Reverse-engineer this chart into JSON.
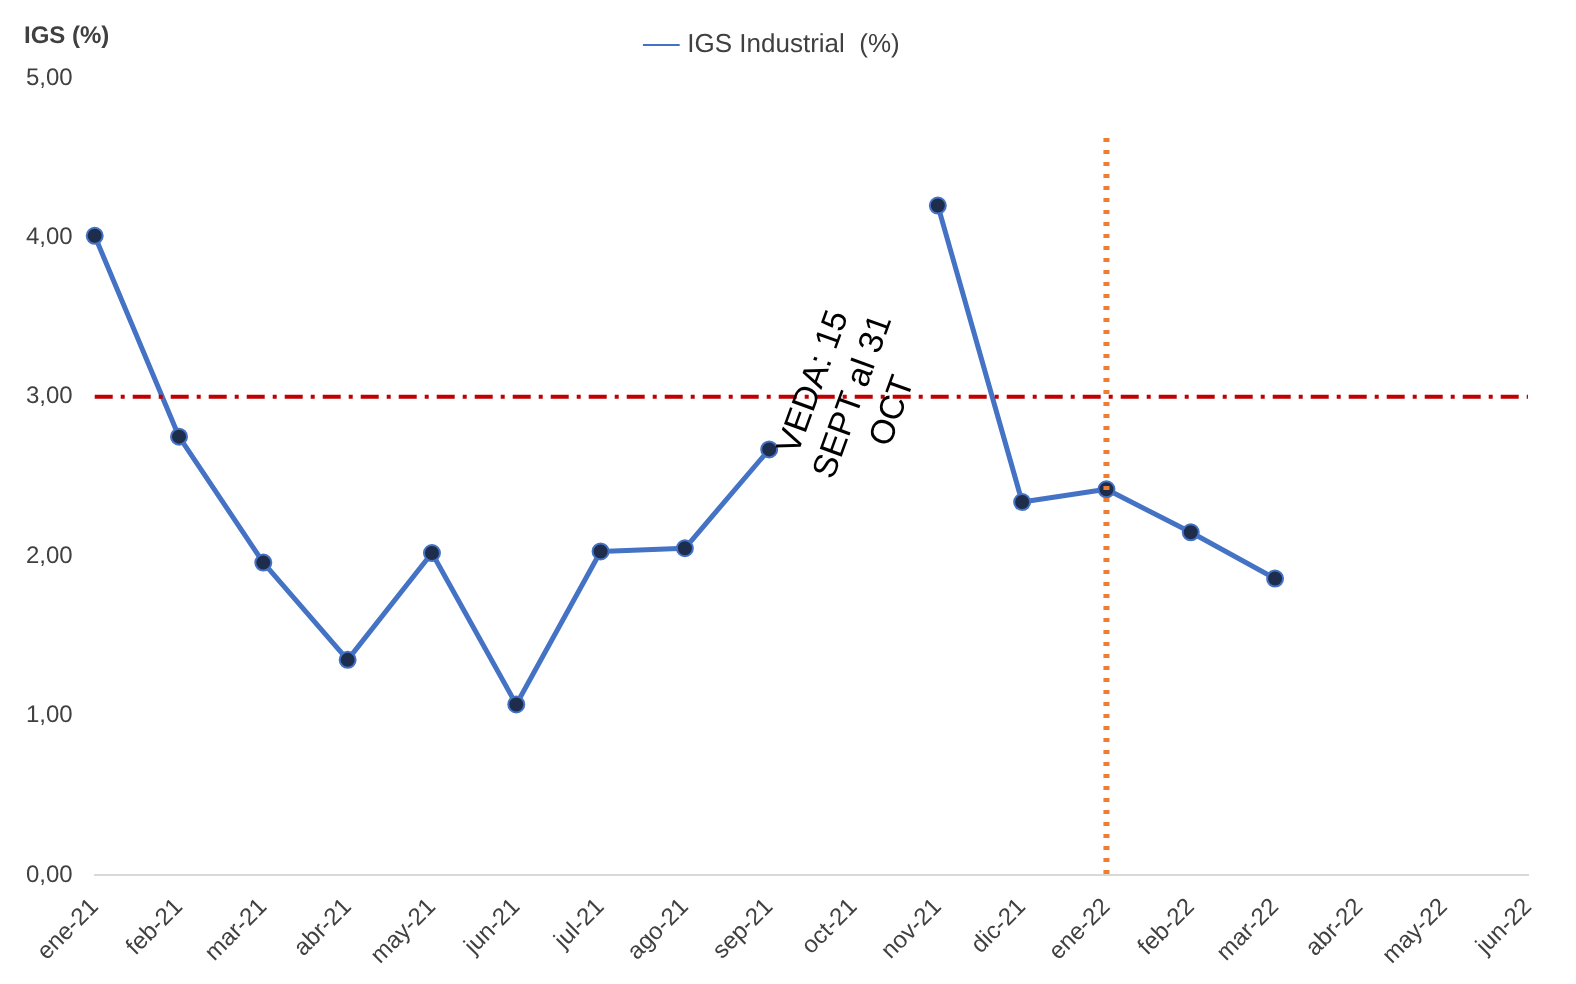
{
  "chart_data": {
    "type": "line",
    "ylabel": "IGS (%)",
    "legend": "top",
    "marker": "circle",
    "line_style": "solid",
    "grid": false,
    "categories": [
      "ene-21",
      "feb-21",
      "mar-21",
      "abr-21",
      "may-21",
      "jun-21",
      "jul-21",
      "ago-21",
      "sep-21",
      "oct-21",
      "nov-21",
      "dic-21",
      "ene-22",
      "feb-22",
      "mar-22",
      "abr-22",
      "may-22",
      "jun-22"
    ],
    "series": [
      {
        "name": "IGS Industrial  (%)",
        "color": "#4472c4",
        "values": [
          4.01,
          2.75,
          1.96,
          1.35,
          2.02,
          1.07,
          2.03,
          2.05,
          2.67,
          null,
          4.2,
          2.34,
          2.42,
          2.15,
          1.86,
          null,
          null,
          null
        ]
      }
    ],
    "ylim": [
      0,
      5
    ],
    "yticks": [
      {
        "value": 0,
        "label": "0,00"
      },
      {
        "value": 1,
        "label": "1,00"
      },
      {
        "value": 2,
        "label": "2,00"
      },
      {
        "value": 3,
        "label": "3,00"
      },
      {
        "value": 4,
        "label": "4,00"
      },
      {
        "value": 5,
        "label": "5,00"
      }
    ],
    "ref_lines": [
      {
        "axis": "y",
        "value": 3,
        "color": "#c00000",
        "line_style": "dashdot"
      },
      {
        "axis": "x",
        "value": "ene-22",
        "color": "#ed7d31",
        "line_style": "dotted"
      }
    ],
    "annotations": [
      {
        "text": "VEDA: 15\nSEPT al 31\nOCT",
        "x": "oct-21",
        "y": 3
      }
    ]
  }
}
